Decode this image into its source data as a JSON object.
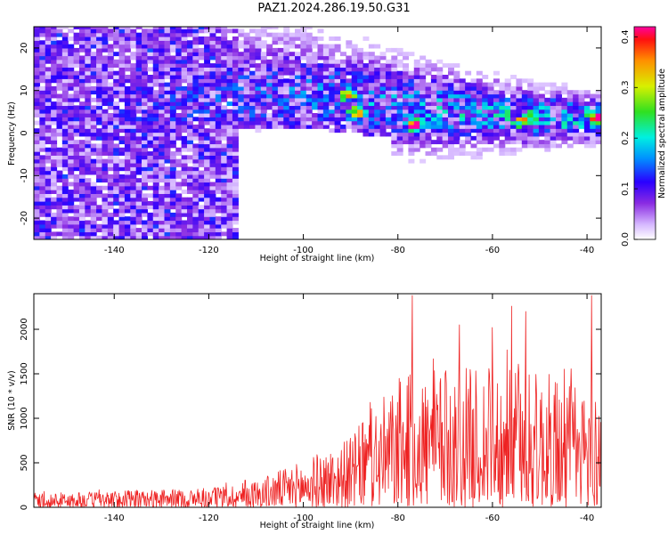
{
  "page": {
    "title": "PAZ1.2024.286.19.50.G31"
  },
  "chart_data": [
    {
      "type": "heatmap",
      "title": "PAZ1.2024.286.19.50.G31",
      "xlabel": "Height of straight line (km)",
      "ylabel": "Frequency (Hz)",
      "xlim": [
        -157,
        -37
      ],
      "ylim": [
        -25,
        25
      ],
      "xticks": [
        -140,
        -120,
        -100,
        -80,
        -60,
        -40
      ],
      "yticks": [
        -20,
        -10,
        0,
        10,
        20
      ],
      "colorbar": {
        "label": "Normalized spectral amplitude",
        "range": [
          0.0,
          0.42
        ],
        "ticks": [
          "0.0",
          "0.1",
          "0.2",
          "0.3",
          "0.4"
        ]
      },
      "ridge": [
        {
          "x": -150,
          "y": 3
        },
        {
          "x": -120,
          "y": 8
        },
        {
          "x": -100,
          "y": 9
        },
        {
          "x": -80,
          "y": 6
        },
        {
          "x": -60,
          "y": 4
        },
        {
          "x": -38,
          "y": 3
        }
      ],
      "peaks": [
        {
          "x": -77,
          "y": 1.5,
          "value": 0.42
        },
        {
          "x": -38.5,
          "y": 3,
          "value": 0.4
        },
        {
          "x": -89,
          "y": 4.5,
          "value": 0.3
        },
        {
          "x": -54,
          "y": 2.5,
          "value": 0.28
        },
        {
          "x": -91,
          "y": 8.5,
          "value": 0.26
        }
      ]
    },
    {
      "type": "line",
      "xlabel": "Height of straight line (km)",
      "ylabel": "SNR (10 * v/v)",
      "xlim": [
        -157,
        -37
      ],
      "ylim": [
        0,
        2400
      ],
      "xticks": [
        -140,
        -120,
        -100,
        -80,
        -60,
        -40
      ],
      "yticks": [
        0,
        500,
        1000,
        1500,
        2000
      ],
      "series": [
        {
          "color": "#ee2222",
          "envelope": [
            {
              "x": -157,
              "y": 150
            },
            {
              "x": -120,
              "y": 200
            },
            {
              "x": -110,
              "y": 300
            },
            {
              "x": -100,
              "y": 500
            },
            {
              "x": -90,
              "y": 750
            },
            {
              "x": -85,
              "y": 1100
            },
            {
              "x": -77,
              "y": 1450
            },
            {
              "x": -65,
              "y": 1500
            },
            {
              "x": -55,
              "y": 1500
            },
            {
              "x": -45,
              "y": 1400
            },
            {
              "x": -37,
              "y": 1200
            }
          ],
          "spikes": [
            {
              "x": -77,
              "y": 2380
            },
            {
              "x": -67,
              "y": 2050
            },
            {
              "x": -60,
              "y": 2020
            },
            {
              "x": -56,
              "y": 2260
            },
            {
              "x": -53,
              "y": 2200
            },
            {
              "x": -39,
              "y": 2380
            }
          ]
        }
      ]
    }
  ]
}
